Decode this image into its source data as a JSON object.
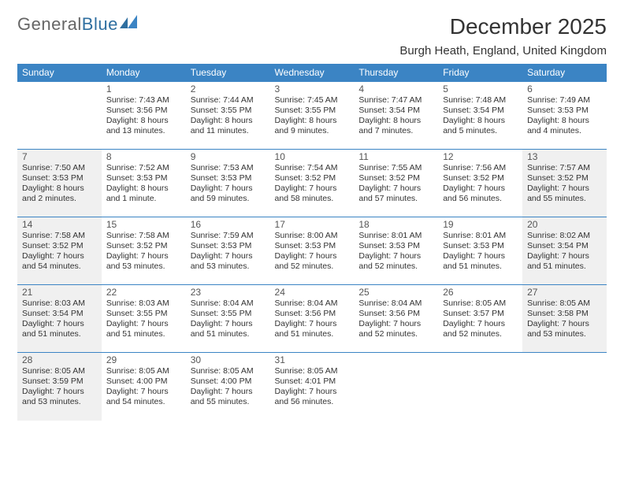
{
  "logo": {
    "general": "General",
    "blue": "Blue"
  },
  "title": "December 2025",
  "subtitle": "Burgh Heath, England, United Kingdom",
  "colors": {
    "header_bg": "#3b84c4",
    "header_text": "#ffffff",
    "shade_bg": "#f0f0f0",
    "rule": "#3b84c4",
    "logo_blue": "#2f6fa0"
  },
  "day_headers": [
    "Sunday",
    "Monday",
    "Tuesday",
    "Wednesday",
    "Thursday",
    "Friday",
    "Saturday"
  ],
  "weeks": [
    [
      {
        "num": "",
        "sunrise": "",
        "sunset": "",
        "daylight": "",
        "shaded": false
      },
      {
        "num": "1",
        "sunrise": "Sunrise: 7:43 AM",
        "sunset": "Sunset: 3:56 PM",
        "daylight": "Daylight: 8 hours and 13 minutes.",
        "shaded": false
      },
      {
        "num": "2",
        "sunrise": "Sunrise: 7:44 AM",
        "sunset": "Sunset: 3:55 PM",
        "daylight": "Daylight: 8 hours and 11 minutes.",
        "shaded": false
      },
      {
        "num": "3",
        "sunrise": "Sunrise: 7:45 AM",
        "sunset": "Sunset: 3:55 PM",
        "daylight": "Daylight: 8 hours and 9 minutes.",
        "shaded": false
      },
      {
        "num": "4",
        "sunrise": "Sunrise: 7:47 AM",
        "sunset": "Sunset: 3:54 PM",
        "daylight": "Daylight: 8 hours and 7 minutes.",
        "shaded": false
      },
      {
        "num": "5",
        "sunrise": "Sunrise: 7:48 AM",
        "sunset": "Sunset: 3:54 PM",
        "daylight": "Daylight: 8 hours and 5 minutes.",
        "shaded": false
      },
      {
        "num": "6",
        "sunrise": "Sunrise: 7:49 AM",
        "sunset": "Sunset: 3:53 PM",
        "daylight": "Daylight: 8 hours and 4 minutes.",
        "shaded": false
      }
    ],
    [
      {
        "num": "7",
        "sunrise": "Sunrise: 7:50 AM",
        "sunset": "Sunset: 3:53 PM",
        "daylight": "Daylight: 8 hours and 2 minutes.",
        "shaded": true
      },
      {
        "num": "8",
        "sunrise": "Sunrise: 7:52 AM",
        "sunset": "Sunset: 3:53 PM",
        "daylight": "Daylight: 8 hours and 1 minute.",
        "shaded": false
      },
      {
        "num": "9",
        "sunrise": "Sunrise: 7:53 AM",
        "sunset": "Sunset: 3:53 PM",
        "daylight": "Daylight: 7 hours and 59 minutes.",
        "shaded": false
      },
      {
        "num": "10",
        "sunrise": "Sunrise: 7:54 AM",
        "sunset": "Sunset: 3:52 PM",
        "daylight": "Daylight: 7 hours and 58 minutes.",
        "shaded": false
      },
      {
        "num": "11",
        "sunrise": "Sunrise: 7:55 AM",
        "sunset": "Sunset: 3:52 PM",
        "daylight": "Daylight: 7 hours and 57 minutes.",
        "shaded": false
      },
      {
        "num": "12",
        "sunrise": "Sunrise: 7:56 AM",
        "sunset": "Sunset: 3:52 PM",
        "daylight": "Daylight: 7 hours and 56 minutes.",
        "shaded": false
      },
      {
        "num": "13",
        "sunrise": "Sunrise: 7:57 AM",
        "sunset": "Sunset: 3:52 PM",
        "daylight": "Daylight: 7 hours and 55 minutes.",
        "shaded": true
      }
    ],
    [
      {
        "num": "14",
        "sunrise": "Sunrise: 7:58 AM",
        "sunset": "Sunset: 3:52 PM",
        "daylight": "Daylight: 7 hours and 54 minutes.",
        "shaded": true
      },
      {
        "num": "15",
        "sunrise": "Sunrise: 7:58 AM",
        "sunset": "Sunset: 3:52 PM",
        "daylight": "Daylight: 7 hours and 53 minutes.",
        "shaded": false
      },
      {
        "num": "16",
        "sunrise": "Sunrise: 7:59 AM",
        "sunset": "Sunset: 3:53 PM",
        "daylight": "Daylight: 7 hours and 53 minutes.",
        "shaded": false
      },
      {
        "num": "17",
        "sunrise": "Sunrise: 8:00 AM",
        "sunset": "Sunset: 3:53 PM",
        "daylight": "Daylight: 7 hours and 52 minutes.",
        "shaded": false
      },
      {
        "num": "18",
        "sunrise": "Sunrise: 8:01 AM",
        "sunset": "Sunset: 3:53 PM",
        "daylight": "Daylight: 7 hours and 52 minutes.",
        "shaded": false
      },
      {
        "num": "19",
        "sunrise": "Sunrise: 8:01 AM",
        "sunset": "Sunset: 3:53 PM",
        "daylight": "Daylight: 7 hours and 51 minutes.",
        "shaded": false
      },
      {
        "num": "20",
        "sunrise": "Sunrise: 8:02 AM",
        "sunset": "Sunset: 3:54 PM",
        "daylight": "Daylight: 7 hours and 51 minutes.",
        "shaded": true
      }
    ],
    [
      {
        "num": "21",
        "sunrise": "Sunrise: 8:03 AM",
        "sunset": "Sunset: 3:54 PM",
        "daylight": "Daylight: 7 hours and 51 minutes.",
        "shaded": true
      },
      {
        "num": "22",
        "sunrise": "Sunrise: 8:03 AM",
        "sunset": "Sunset: 3:55 PM",
        "daylight": "Daylight: 7 hours and 51 minutes.",
        "shaded": false
      },
      {
        "num": "23",
        "sunrise": "Sunrise: 8:04 AM",
        "sunset": "Sunset: 3:55 PM",
        "daylight": "Daylight: 7 hours and 51 minutes.",
        "shaded": false
      },
      {
        "num": "24",
        "sunrise": "Sunrise: 8:04 AM",
        "sunset": "Sunset: 3:56 PM",
        "daylight": "Daylight: 7 hours and 51 minutes.",
        "shaded": false
      },
      {
        "num": "25",
        "sunrise": "Sunrise: 8:04 AM",
        "sunset": "Sunset: 3:56 PM",
        "daylight": "Daylight: 7 hours and 52 minutes.",
        "shaded": false
      },
      {
        "num": "26",
        "sunrise": "Sunrise: 8:05 AM",
        "sunset": "Sunset: 3:57 PM",
        "daylight": "Daylight: 7 hours and 52 minutes.",
        "shaded": false
      },
      {
        "num": "27",
        "sunrise": "Sunrise: 8:05 AM",
        "sunset": "Sunset: 3:58 PM",
        "daylight": "Daylight: 7 hours and 53 minutes.",
        "shaded": true
      }
    ],
    [
      {
        "num": "28",
        "sunrise": "Sunrise: 8:05 AM",
        "sunset": "Sunset: 3:59 PM",
        "daylight": "Daylight: 7 hours and 53 minutes.",
        "shaded": true
      },
      {
        "num": "29",
        "sunrise": "Sunrise: 8:05 AM",
        "sunset": "Sunset: 4:00 PM",
        "daylight": "Daylight: 7 hours and 54 minutes.",
        "shaded": false
      },
      {
        "num": "30",
        "sunrise": "Sunrise: 8:05 AM",
        "sunset": "Sunset: 4:00 PM",
        "daylight": "Daylight: 7 hours and 55 minutes.",
        "shaded": false
      },
      {
        "num": "31",
        "sunrise": "Sunrise: 8:05 AM",
        "sunset": "Sunset: 4:01 PM",
        "daylight": "Daylight: 7 hours and 56 minutes.",
        "shaded": false
      },
      {
        "num": "",
        "sunrise": "",
        "sunset": "",
        "daylight": "",
        "shaded": false
      },
      {
        "num": "",
        "sunrise": "",
        "sunset": "",
        "daylight": "",
        "shaded": false
      },
      {
        "num": "",
        "sunrise": "",
        "sunset": "",
        "daylight": "",
        "shaded": false
      }
    ]
  ]
}
